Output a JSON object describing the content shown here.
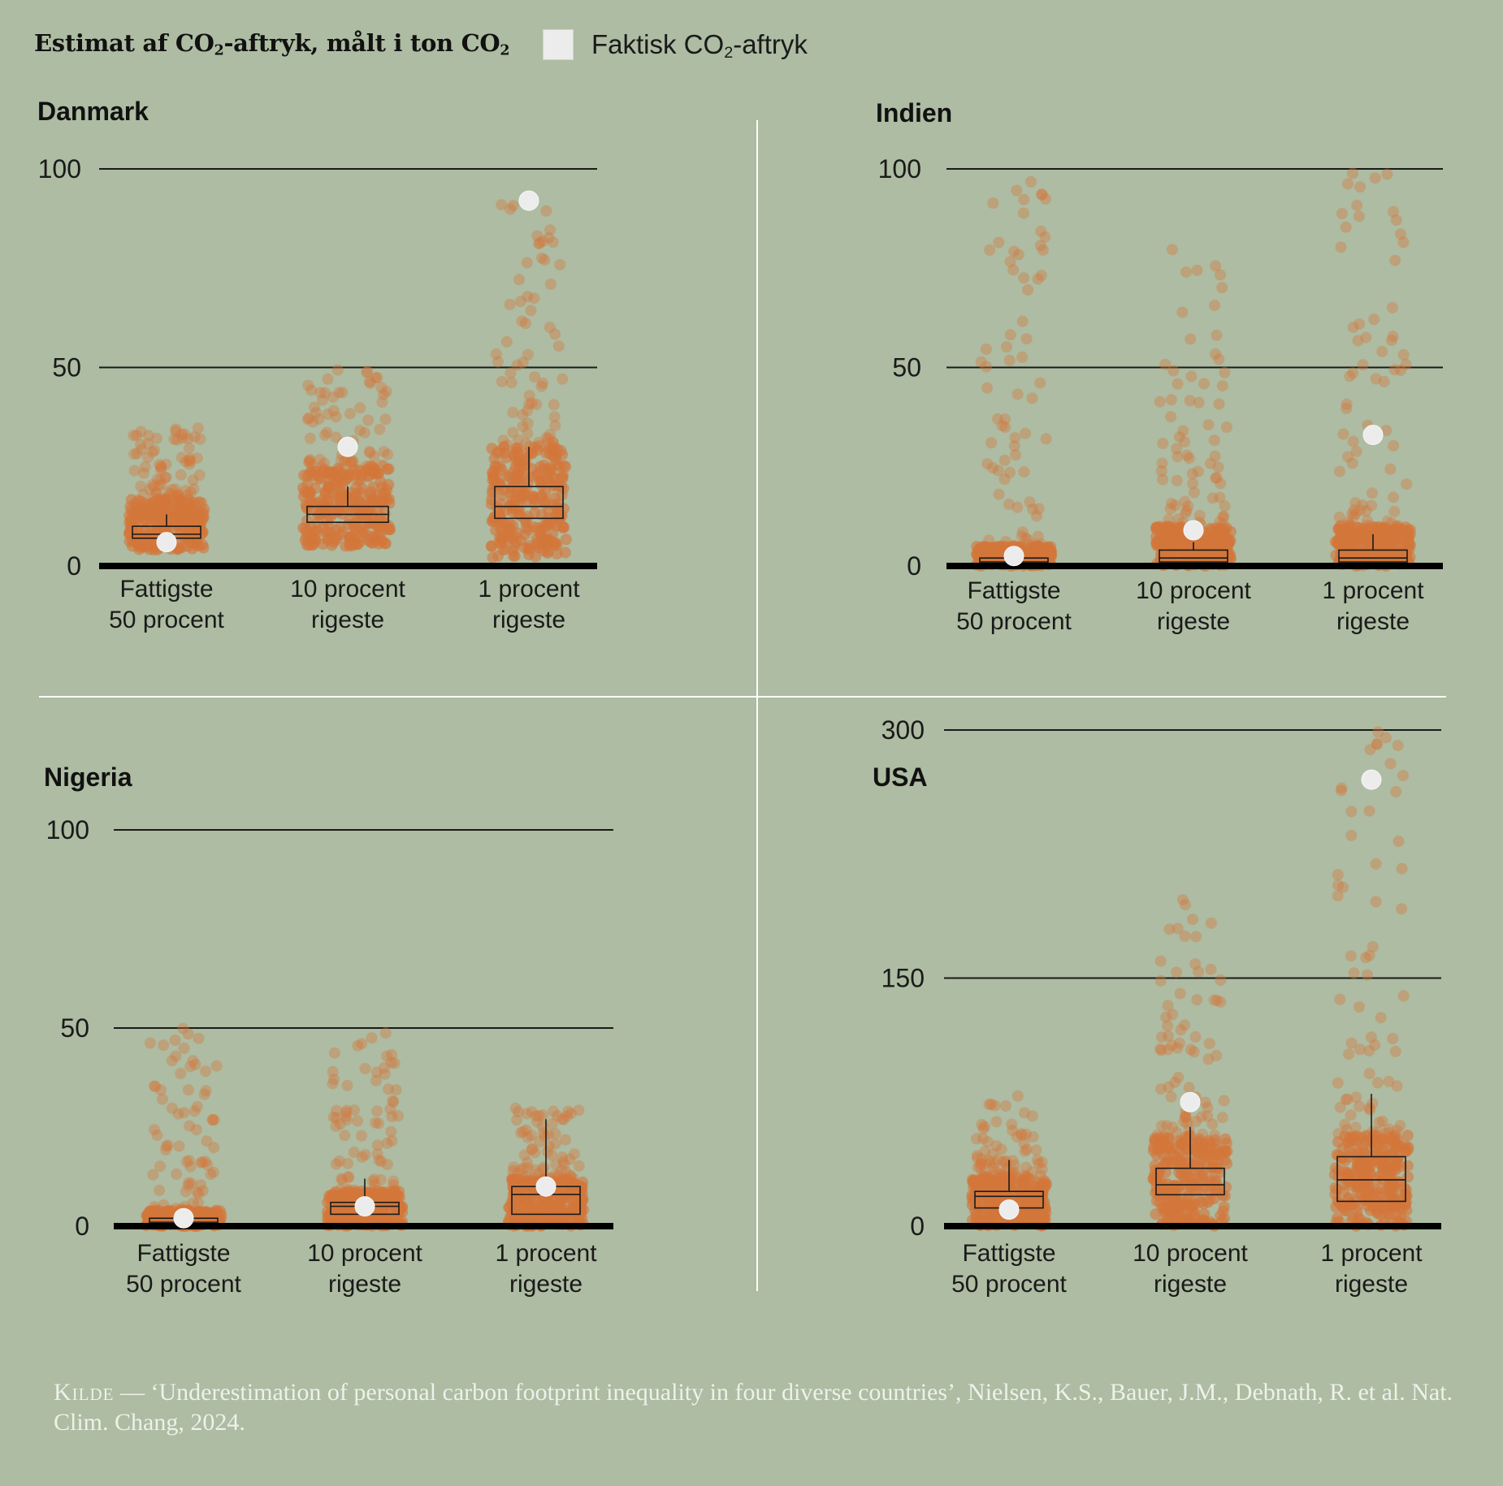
{
  "header": {
    "title_pre": "Estimat af CO",
    "title_sub1": "2",
    "title_mid": "-aftryk, målt i ton CO",
    "title_sub2": "2",
    "legend_pre": "Faktisk CO",
    "legend_sub": "2",
    "legend_post": "-aftryk"
  },
  "colors": {
    "background": "#adbca2",
    "dots": "#d4773a",
    "actual_marker": "#ececec"
  },
  "chart_data": [
    {
      "type": "scatter",
      "title": "Danmark",
      "categories": [
        "Fattigste\n50 procent",
        "10 procent\nrigeste",
        "1 procent\nrigeste"
      ],
      "category_lines": [
        [
          "Fattigste",
          "50 procent"
        ],
        [
          "10 procent",
          "rigeste"
        ],
        [
          "1 procent",
          "rigeste"
        ]
      ],
      "yticks": [
        0,
        50,
        100
      ],
      "ylim": [
        0,
        100
      ],
      "actual": [
        6,
        30,
        92
      ],
      "boxes": [
        {
          "q1": 7,
          "median": 8,
          "q3": 10,
          "whisker_high": 13
        },
        {
          "q1": 11,
          "median": 13,
          "q3": 15,
          "whisker_high": 20
        },
        {
          "q1": 12,
          "median": 15,
          "q3": 20,
          "whisker_high": 30
        }
      ],
      "dot_max": [
        35,
        50,
        92
      ],
      "dot_dense": [
        [
          4,
          17
        ],
        [
          5,
          25
        ],
        [
          2,
          30
        ]
      ]
    },
    {
      "type": "scatter",
      "title": "Indien",
      "categories": [
        "Fattigste\n50 procent",
        "10 procent\nrigeste",
        "1 procent\nrigeste"
      ],
      "category_lines": [
        [
          "Fattigste",
          "50 procent"
        ],
        [
          "10 procent",
          "rigeste"
        ],
        [
          "1 procent",
          "rigeste"
        ]
      ],
      "yticks": [
        0,
        50,
        100
      ],
      "ylim": [
        0,
        100
      ],
      "actual": [
        2.5,
        9,
        33
      ],
      "boxes": [
        {
          "q1": 0.5,
          "median": 1,
          "q3": 2,
          "whisker_high": 3
        },
        {
          "q1": 1,
          "median": 2,
          "q3": 4,
          "whisker_high": 6
        },
        {
          "q1": 1,
          "median": 2,
          "q3": 4,
          "whisker_high": 8
        }
      ],
      "dot_max": [
        100,
        80,
        100
      ],
      "dot_dense": [
        [
          0,
          5
        ],
        [
          0,
          10
        ],
        [
          0,
          10
        ]
      ]
    },
    {
      "type": "scatter",
      "title": "Nigeria",
      "categories": [
        "Fattigste\n50 procent",
        "10 procent\nrigeste",
        "1 procent\nrigeste"
      ],
      "category_lines": [
        [
          "Fattigste",
          "50 procent"
        ],
        [
          "10 procent",
          "rigeste"
        ],
        [
          "1 procent",
          "rigeste"
        ]
      ],
      "yticks": [
        0,
        50,
        100
      ],
      "ylim": [
        0,
        100
      ],
      "actual": [
        2,
        5,
        10
      ],
      "boxes": [
        {
          "q1": 0.5,
          "median": 1,
          "q3": 2,
          "whisker_high": 3
        },
        {
          "q1": 3,
          "median": 5,
          "q3": 6,
          "whisker_high": 12
        },
        {
          "q1": 3,
          "median": 8,
          "q3": 10,
          "whisker_high": 27
        }
      ],
      "dot_max": [
        50,
        50,
        30
      ],
      "dot_dense": [
        [
          0,
          4
        ],
        [
          0,
          9
        ],
        [
          0,
          12
        ]
      ]
    },
    {
      "type": "scatter",
      "title": "USA",
      "categories": [
        "Fattigste\n50 procent",
        "10 procent\nrigeste",
        "1 procent\nrigeste"
      ],
      "category_lines": [
        [
          "Fattigste",
          "50 procent"
        ],
        [
          "10 procent",
          "rigeste"
        ],
        [
          "1 procent",
          "rigeste"
        ]
      ],
      "yticks": [
        0,
        150,
        300
      ],
      "ylim": [
        0,
        300
      ],
      "actual": [
        10,
        75,
        270
      ],
      "boxes": [
        {
          "q1": 11,
          "median": 18,
          "q3": 21,
          "whisker_high": 40
        },
        {
          "q1": 19,
          "median": 25,
          "q3": 35,
          "whisker_high": 60
        },
        {
          "q1": 15,
          "median": 28,
          "q3": 42,
          "whisker_high": 80
        }
      ],
      "dot_max": [
        80,
        200,
        300
      ],
      "dot_dense": [
        [
          0,
          30
        ],
        [
          0,
          55
        ],
        [
          0,
          55
        ]
      ]
    }
  ],
  "source": {
    "label": "Kilde",
    "dash": " — ",
    "title": "‘Underestimation of personal carbon footprint inequality in four diverse countries’",
    "rest": ", Nielsen, K.S., Bauer, J.M., Debnath, R. et al. Nat. Clim. Chang, 2024."
  }
}
